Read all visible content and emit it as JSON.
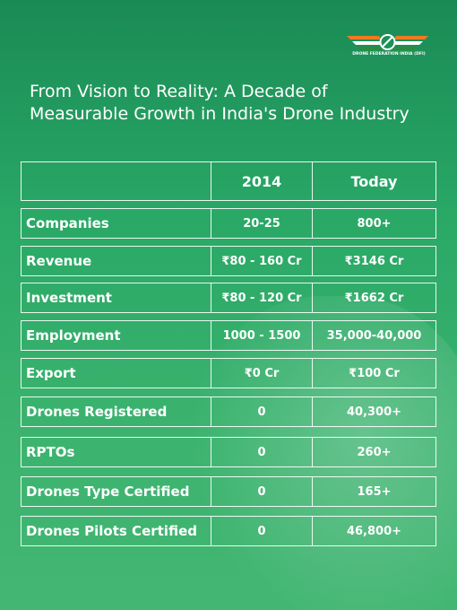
{
  "logo": {
    "text": "DRONE FEDERATION INDIA (DFI)"
  },
  "header": {
    "title_lines": [
      "From Vision to Reality: A Decade of",
      "Measurable Growth in India's Drone Industry"
    ]
  },
  "table": {
    "columns": [
      "2014",
      "Today"
    ],
    "rows": [
      [
        "Companies",
        "20-25",
        "800+"
      ],
      [
        "Revenue",
        "₹80 - 160 Cr",
        "₹3146 Cr"
      ],
      [
        "Investment",
        "₹80 - 120 Cr",
        "₹1662 Cr"
      ],
      [
        "Employment",
        "1000 - 1500",
        "35,000-40,000"
      ],
      [
        "Export",
        "₹0 Cr",
        "₹100 Cr"
      ],
      [
        "Drones Registered",
        "0",
        "40,300+"
      ],
      [
        "RPTOs",
        "0",
        "260+"
      ],
      [
        "Drones Type Certified",
        "0",
        "165+"
      ],
      [
        "Drones Pilots Certified",
        "0",
        "46,800+"
      ]
    ]
  }
}
